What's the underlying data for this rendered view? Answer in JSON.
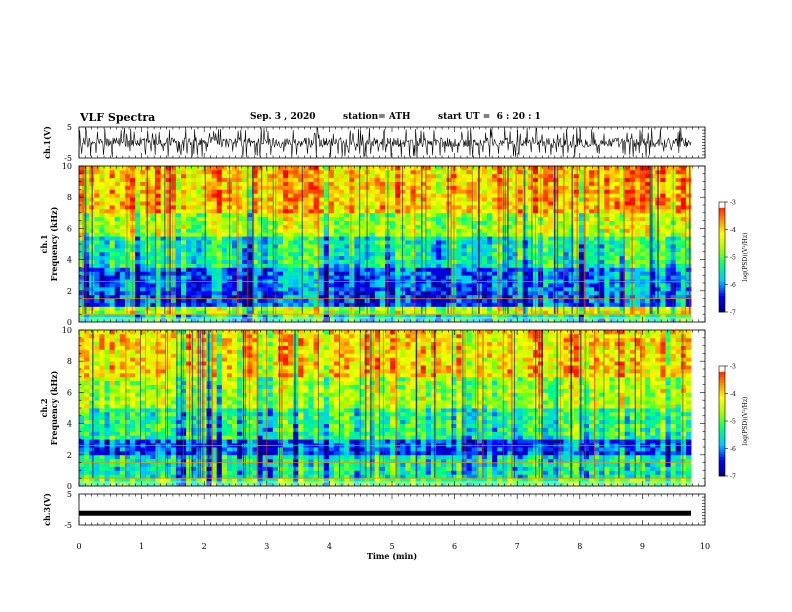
{
  "header": {
    "title": "VLF Spectra",
    "date": "Sep. 3 , 2020",
    "station": "station= ATH",
    "start_ut": "start UT =  6 : 20 : 1"
  },
  "chart_data": [
    {
      "type": "line",
      "panel": "ch1-waveform",
      "ylabel": "ch.1(V)",
      "yticks": [
        "5",
        "-5"
      ],
      "ylim": [
        -5,
        5
      ],
      "description_of_trace": "dense noisy black waveform filling roughly -3..+3 V"
    },
    {
      "type": "heatmap",
      "panel": "ch1-spectrogram",
      "ylabel": "ch.1\nFrequency (kHz)",
      "yticks": [
        "0",
        "2",
        "4",
        "6",
        "8",
        "10"
      ],
      "ylim": [
        0,
        10
      ],
      "xlim": [
        0,
        9.8
      ],
      "colorbar": {
        "label": "log(PSD)(V²/Hz)",
        "ticks": [
          "-3",
          "-4",
          "-5",
          "-6",
          "-7"
        ],
        "range": [
          -7,
          -3
        ]
      },
      "band_levels": [
        {
          "f_from": 0.0,
          "f_to": 0.5,
          "level": -5.3
        },
        {
          "f_from": 0.5,
          "f_to": 1.0,
          "level": -4.4
        },
        {
          "f_from": 1.0,
          "f_to": 2.0,
          "level": -6.1
        },
        {
          "f_from": 2.0,
          "f_to": 3.5,
          "level": -6.0
        },
        {
          "f_from": 3.5,
          "f_to": 5.5,
          "level": -5.3
        },
        {
          "f_from": 5.5,
          "f_to": 7.0,
          "level": -4.5
        },
        {
          "f_from": 7.0,
          "f_to": 10.0,
          "level": -3.8
        }
      ]
    },
    {
      "type": "heatmap",
      "panel": "ch2-spectrogram",
      "ylabel": "ch.2\nFrequency (kHz)",
      "yticks": [
        "0",
        "2",
        "4",
        "6",
        "8",
        "10"
      ],
      "ylim": [
        0,
        10
      ],
      "xlim": [
        0,
        9.8
      ],
      "colorbar": {
        "label": "log(PSD)(V²/Hz)",
        "ticks": [
          "-3",
          "-4",
          "-5",
          "-6",
          "-7"
        ],
        "range": [
          -7,
          -3
        ]
      },
      "band_levels": [
        {
          "f_from": 0.0,
          "f_to": 0.5,
          "level": -5.0
        },
        {
          "f_from": 0.5,
          "f_to": 2.0,
          "level": -5.4
        },
        {
          "f_from": 2.0,
          "f_to": 3.0,
          "level": -6.2
        },
        {
          "f_from": 3.0,
          "f_to": 5.0,
          "level": -5.2
        },
        {
          "f_from": 5.0,
          "f_to": 7.0,
          "level": -4.6
        },
        {
          "f_from": 7.0,
          "f_to": 10.0,
          "level": -4.0
        }
      ]
    },
    {
      "type": "line",
      "panel": "ch3-waveform",
      "ylabel": "ch.3(V)",
      "yticks": [
        "5",
        "-5"
      ],
      "ylim": [
        -5,
        5
      ],
      "flat_value": -1.2
    }
  ],
  "x_axis": {
    "label": "Time (min)",
    "ticks": [
      "0",
      "1",
      "2",
      "3",
      "4",
      "5",
      "6",
      "7",
      "8",
      "9",
      "10"
    ],
    "xlim": [
      0,
      10
    ]
  },
  "colors": {
    "colormap": [
      "#000080",
      "#0000ff",
      "#00c8ff",
      "#00ff80",
      "#a0ff00",
      "#ffff00",
      "#ff8000",
      "#ff0000",
      "#ffffff"
    ],
    "trace": "#000000"
  }
}
